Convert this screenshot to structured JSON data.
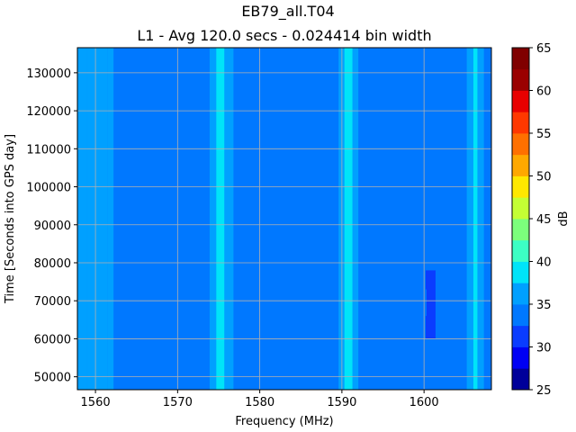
{
  "chart_data": {
    "type": "heatmap",
    "suptitle": "EB79_all.T04",
    "title": "L1 - Avg 120.0 secs - 0.024414 bin width",
    "xlabel": "Frequency (MHz)",
    "ylabel": "Time [Seconds into GPS day]",
    "colorbar_label": "dB",
    "xlim": [
      1557.8,
      1608.2
    ],
    "ylim": [
      46600,
      136600
    ],
    "xticks": [
      1560,
      1570,
      1580,
      1590,
      1600
    ],
    "yticks": [
      50000,
      60000,
      70000,
      80000,
      90000,
      100000,
      110000,
      120000,
      130000
    ],
    "xtick_labels": [
      "1560",
      "1570",
      "1580",
      "1590",
      "1600"
    ],
    "ytick_labels": [
      "50000",
      "60000",
      "70000",
      "80000",
      "90000",
      "100000",
      "110000",
      "120000",
      "130000"
    ],
    "grid": true,
    "colorbar_levels": [
      25,
      27.5,
      30,
      32.5,
      35,
      37.5,
      40,
      42.5,
      45,
      47.5,
      50,
      52.5,
      55,
      57.5,
      60,
      62.5,
      65
    ],
    "colorbar_ticks": [
      25,
      30,
      35,
      40,
      45,
      50,
      55,
      60,
      65
    ],
    "colorbar_tick_labels": [
      "25",
      "30",
      "35",
      "40",
      "45",
      "50",
      "55",
      "60",
      "65"
    ],
    "colorbar_colors": [
      "#00009a",
      "#0000f4",
      "#0a3cff",
      "#0078ff",
      "#00a0ff",
      "#00e4f8",
      "#3cffc4",
      "#7cff7c",
      "#c4ff34",
      "#ffe800",
      "#ffa800",
      "#ff7000",
      "#ff3800",
      "#e80000",
      "#9a0000",
      "#800000"
    ],
    "background_level_db": 33.5,
    "bands": [
      {
        "f_start": 1557.8,
        "f_end": 1558.9,
        "level_db": 36
      },
      {
        "f_start": 1558.9,
        "f_end": 1561.5,
        "level_db": 36
      },
      {
        "f_start": 1561.5,
        "f_end": 1562.2,
        "level_db": 36
      },
      {
        "f_start": 1573.9,
        "f_end": 1574.7,
        "level_db": 36
      },
      {
        "f_start": 1574.7,
        "f_end": 1575.7,
        "level_db": 39
      },
      {
        "f_start": 1575.7,
        "f_end": 1576.8,
        "level_db": 36
      },
      {
        "f_start": 1589.6,
        "f_end": 1590.3,
        "level_db": 36
      },
      {
        "f_start": 1590.3,
        "f_end": 1591.3,
        "level_db": 38
      },
      {
        "f_start": 1591.3,
        "f_end": 1592.0,
        "level_db": 36
      },
      {
        "f_start": 1605.2,
        "f_end": 1606.0,
        "level_db": 36
      },
      {
        "f_start": 1606.0,
        "f_end": 1606.5,
        "level_db": 38
      },
      {
        "f_start": 1606.5,
        "f_end": 1607.3,
        "level_db": 36
      },
      {
        "f_start": 1607.3,
        "f_end": 1608.2,
        "level_db": 33.5
      }
    ],
    "low_regions": [
      {
        "f_start": 1600.2,
        "f_end": 1601.4,
        "t_start": 60000,
        "t_end": 78000,
        "level_db": 31
      },
      {
        "f_start": 1599.6,
        "f_end": 1600.3,
        "t_start": 66000,
        "t_end": 73000,
        "level_db": 33.5
      }
    ],
    "colors": {
      "figure_background": "#ffffff",
      "grid": "#b0b0b0"
    }
  }
}
